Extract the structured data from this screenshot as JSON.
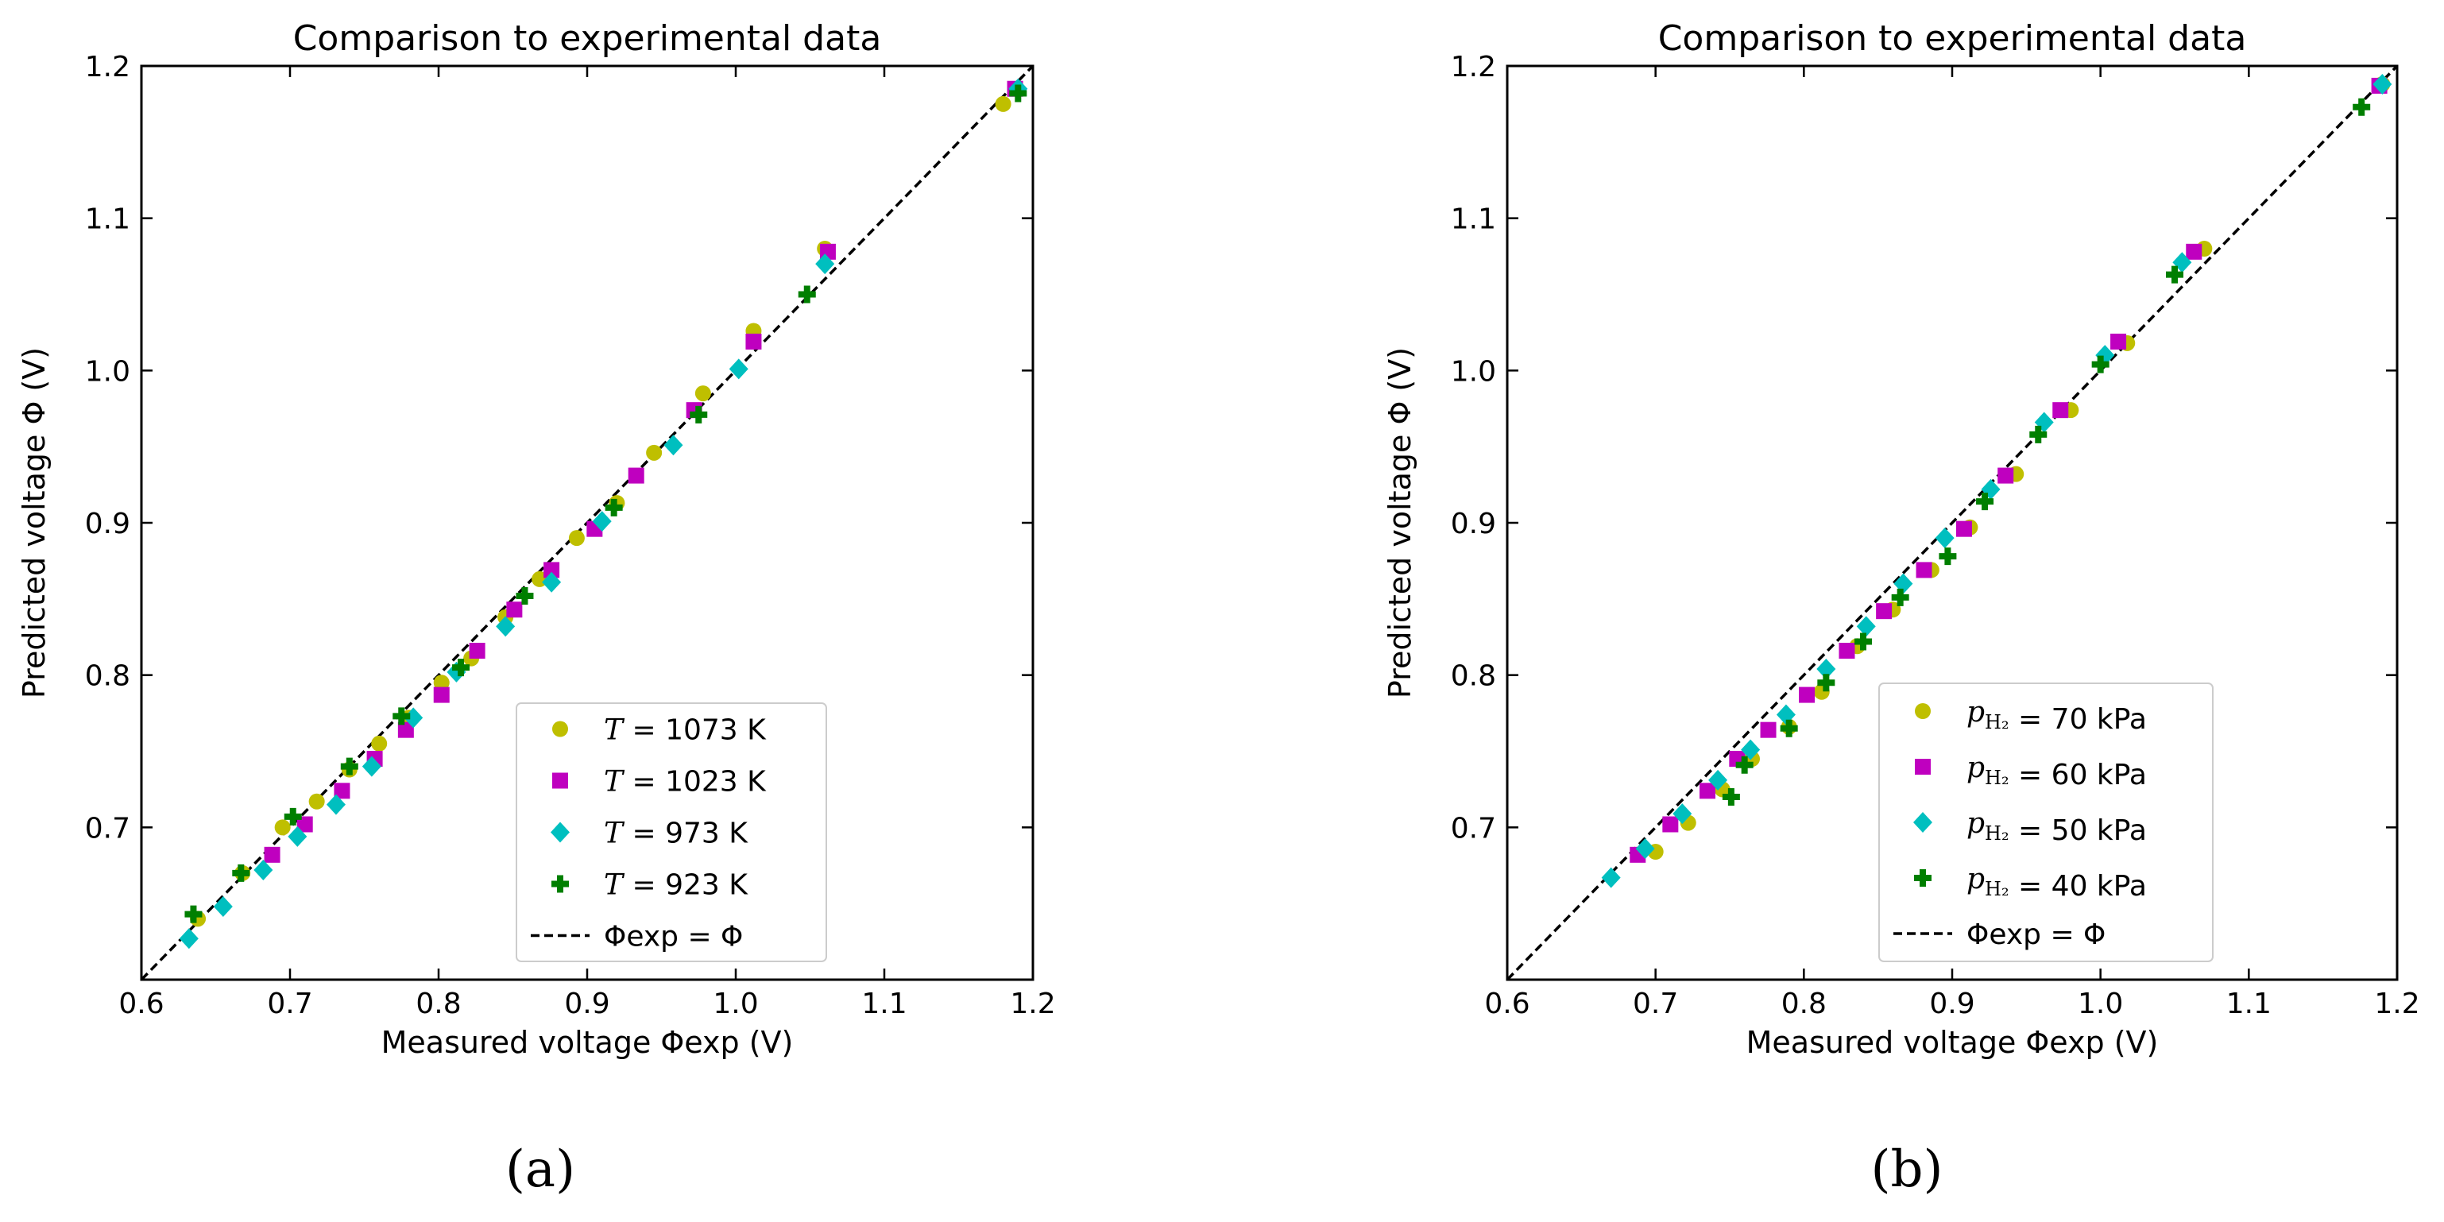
{
  "chart_data": [
    {
      "type": "scatter",
      "title": "Comparison to experimental data",
      "xlabel": "Measured voltage Φexp (V)",
      "ylabel": "Predicted voltage Φ (V)",
      "xlim": [
        0.6,
        1.2
      ],
      "ylim": [
        0.6,
        1.2
      ],
      "xticks": [
        "0.6",
        "0.7",
        "0.8",
        "0.9",
        "1.0",
        "1.1",
        "1.2"
      ],
      "yticks": [
        "0.7",
        "0.8",
        "0.9",
        "1.0",
        "1.1",
        "1.2"
      ],
      "legend_position": "lower-right",
      "panel_label": "(a)",
      "series": [
        {
          "name": "T = 1073 K",
          "var": "T",
          "value": "1073 K",
          "marker": "circle",
          "color": "#bfbf00",
          "x": [
            0.638,
            0.668,
            0.695,
            0.718,
            0.74,
            0.76,
            0.78,
            0.802,
            0.822,
            0.845,
            0.868,
            0.893,
            0.92,
            0.945,
            0.978,
            1.012,
            1.06,
            1.18
          ],
          "y": [
            0.64,
            0.67,
            0.7,
            0.717,
            0.738,
            0.755,
            0.772,
            0.795,
            0.811,
            0.838,
            0.863,
            0.89,
            0.913,
            0.946,
            0.985,
            1.026,
            1.08,
            1.175
          ]
        },
        {
          "name": "T = 1023 K",
          "var": "T",
          "value": "1023 K",
          "marker": "square",
          "color": "#bf00bf",
          "x": [
            0.688,
            0.71,
            0.735,
            0.757,
            0.778,
            0.802,
            0.826,
            0.851,
            0.876,
            0.905,
            0.933,
            0.972,
            1.012,
            1.062,
            1.188
          ],
          "y": [
            0.682,
            0.702,
            0.724,
            0.745,
            0.764,
            0.787,
            0.816,
            0.843,
            0.869,
            0.896,
            0.931,
            0.974,
            1.019,
            1.078,
            1.185
          ]
        },
        {
          "name": "T = 973 K",
          "var": "T",
          "value": "973 K",
          "marker": "diamond",
          "color": "#00bfbf",
          "x": [
            0.632,
            0.655,
            0.682,
            0.705,
            0.731,
            0.755,
            0.783,
            0.812,
            0.845,
            0.876,
            0.91,
            0.958,
            1.002,
            1.06,
            1.19
          ],
          "y": [
            0.627,
            0.648,
            0.672,
            0.694,
            0.715,
            0.74,
            0.772,
            0.802,
            0.832,
            0.861,
            0.901,
            0.951,
            1.001,
            1.07,
            1.185
          ]
        },
        {
          "name": "T = 923 K",
          "var": "T",
          "value": "923 K",
          "marker": "plus",
          "color": "#007f00",
          "x": [
            0.635,
            0.667,
            0.702,
            0.74,
            0.775,
            0.815,
            0.858,
            0.918,
            0.975,
            1.048,
            1.19
          ],
          "y": [
            0.643,
            0.67,
            0.707,
            0.74,
            0.773,
            0.805,
            0.852,
            0.91,
            0.971,
            1.05,
            1.182
          ]
        }
      ],
      "reference_line": {
        "label": "Φexp = Φ",
        "from": [
          0.6,
          0.6
        ],
        "to": [
          1.2,
          1.2
        ],
        "style": "dashed"
      }
    },
    {
      "type": "scatter",
      "title": "Comparison to experimental data",
      "xlabel": "Measured voltage Φexp (V)",
      "ylabel": "Predicted voltage Φ (V)",
      "xlim": [
        0.6,
        1.2
      ],
      "ylim": [
        0.6,
        1.2
      ],
      "xticks": [
        "0.6",
        "0.7",
        "0.8",
        "0.9",
        "1.0",
        "1.1",
        "1.2"
      ],
      "yticks": [
        "0.7",
        "0.8",
        "0.9",
        "1.0",
        "1.1",
        "1.2"
      ],
      "legend_position": "lower-right",
      "panel_label": "(b)",
      "series": [
        {
          "name": "pH2 = 70 kPa",
          "var": "p",
          "value": "70 kPa",
          "marker": "circle",
          "color": "#bfbf00",
          "x": [
            0.7,
            0.722,
            0.745,
            0.765,
            0.79,
            0.812,
            0.836,
            0.86,
            0.886,
            0.912,
            0.943,
            0.98,
            1.018,
            1.07,
            1.19
          ],
          "y": [
            0.684,
            0.703,
            0.725,
            0.745,
            0.766,
            0.789,
            0.819,
            0.843,
            0.869,
            0.897,
            0.932,
            0.974,
            1.018,
            1.08,
            1.188
          ]
        },
        {
          "name": "pH2 = 60 kPa",
          "var": "p",
          "value": "60 kPa",
          "marker": "square",
          "color": "#bf00bf",
          "x": [
            0.688,
            0.71,
            0.735,
            0.755,
            0.776,
            0.802,
            0.829,
            0.854,
            0.881,
            0.908,
            0.936,
            0.973,
            1.012,
            1.063,
            1.188
          ],
          "y": [
            0.682,
            0.702,
            0.724,
            0.745,
            0.764,
            0.787,
            0.816,
            0.842,
            0.869,
            0.896,
            0.931,
            0.974,
            1.019,
            1.078,
            1.187
          ]
        },
        {
          "name": "pH2 = 50 kPa",
          "var": "p",
          "value": "50 kPa",
          "marker": "diamond",
          "color": "#00bfbf",
          "x": [
            0.67,
            0.693,
            0.718,
            0.742,
            0.764,
            0.788,
            0.815,
            0.842,
            0.867,
            0.895,
            0.926,
            0.962,
            1.003,
            1.055,
            1.19
          ],
          "y": [
            0.667,
            0.686,
            0.709,
            0.731,
            0.751,
            0.774,
            0.804,
            0.832,
            0.86,
            0.89,
            0.922,
            0.966,
            1.01,
            1.071,
            1.188
          ]
        },
        {
          "name": "pH2 = 40 kPa",
          "var": "p",
          "value": "40 kPa",
          "marker": "plus",
          "color": "#007f00",
          "x": [
            0.751,
            0.76,
            0.79,
            0.815,
            0.84,
            0.865,
            0.897,
            0.922,
            0.958,
            1.0,
            1.05,
            1.176
          ],
          "y": [
            0.72,
            0.741,
            0.765,
            0.795,
            0.822,
            0.851,
            0.878,
            0.914,
            0.958,
            1.004,
            1.063,
            1.173
          ]
        }
      ],
      "reference_line": {
        "label": "Φexp = Φ",
        "from": [
          0.6,
          0.6
        ],
        "to": [
          1.2,
          1.2
        ],
        "style": "dashed"
      }
    }
  ]
}
